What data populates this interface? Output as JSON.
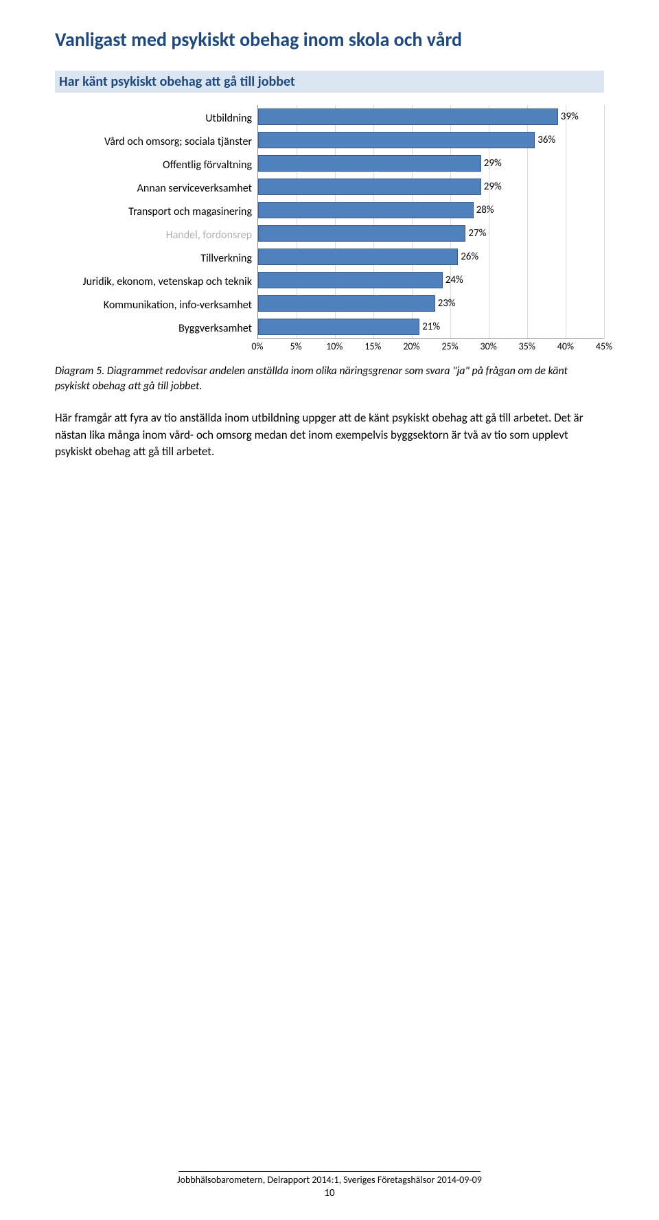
{
  "title": "Vanligast med psykiskt obehag inom skola och vård",
  "subtitle": "Har känt psykiskt obehag att gå till jobbet",
  "chart": {
    "type": "bar-horizontal",
    "x_max": 45,
    "x_tick_step": 5,
    "bar_color": "#4f81bd",
    "bar_border": "#385d8a",
    "grid_color": "#d9d9d9",
    "categories": [
      {
        "label": "Utbildning",
        "value": 39,
        "display": "39%",
        "faded": false
      },
      {
        "label": "Vård och omsorg; sociala tjänster",
        "value": 36,
        "display": "36%",
        "faded": false
      },
      {
        "label": "Offentlig förvaltning",
        "value": 29,
        "display": "29%",
        "faded": false
      },
      {
        "label": "Annan serviceverksamhet",
        "value": 29,
        "display": "29%",
        "faded": false
      },
      {
        "label": "Transport och magasinering",
        "value": 28,
        "display": "28%",
        "faded": false
      },
      {
        "label": "Handel, fordonsrep",
        "value": 27,
        "display": "27%",
        "faded": true
      },
      {
        "label": "Tillverkning",
        "value": 26,
        "display": "26%",
        "faded": false
      },
      {
        "label": "Juridik, ekonom, vetenskap och teknik",
        "value": 24,
        "display": "24%",
        "faded": false
      },
      {
        "label": "Kommunikation, info-verksamhet",
        "value": 23,
        "display": "23%",
        "faded": false
      },
      {
        "label": "Byggverksamhet",
        "value": 21,
        "display": "21%",
        "faded": false
      }
    ],
    "x_ticks": [
      "0%",
      "5%",
      "10%",
      "15%",
      "20%",
      "25%",
      "30%",
      "35%",
      "40%",
      "45%"
    ]
  },
  "caption": "Diagram 5. Diagrammet redovisar andelen anställda inom olika näringsgrenar som svara \"ja\" på frågan om de känt psykiskt obehag att gå till jobbet.",
  "body": "Här framgår att fyra av tio anställda inom utbildning uppger att de känt psykiskt obehag att gå till arbetet. Det är nästan lika många inom vård- och omsorg medan det inom exempelvis byggsektorn är två av tio som upplevt psykiskt obehag att gå till arbetet.",
  "footer": {
    "text": "Jobbhälsobarometern, Delrapport 2014:1, Sveriges Företagshälsor 2014-09-09",
    "page": "10"
  }
}
